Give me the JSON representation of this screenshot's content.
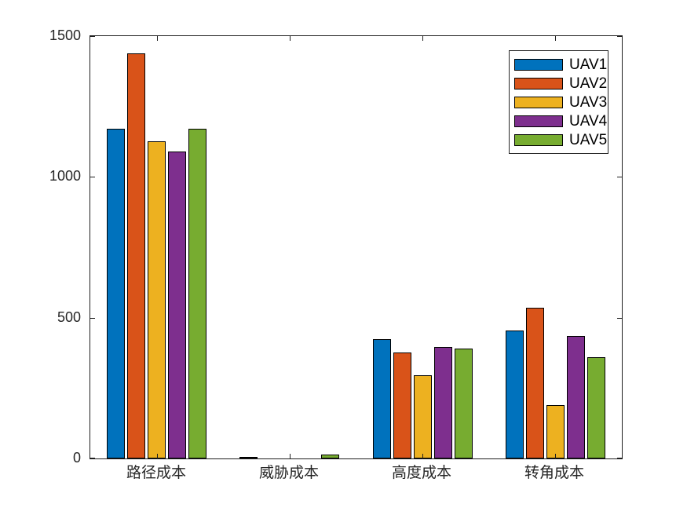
{
  "chart_data": {
    "type": "bar",
    "title": "",
    "xlabel": "",
    "ylabel": "",
    "grid": false,
    "background": "#ffffff",
    "axis_color": "#1f1f1f",
    "bar_edge_color": "#000000",
    "ylim": [
      0,
      1500
    ],
    "yticks": [
      "0",
      "500",
      "1000",
      "1500"
    ],
    "ytick_values": [
      0,
      500,
      1000,
      1500
    ],
    "categories": [
      "路径成本",
      "威胁成本",
      "高度成本",
      "转角成本"
    ],
    "legend_position": "top-right",
    "series": [
      {
        "name": "UAV1",
        "color": "#0072BD",
        "values": [
          1170,
          5,
          425,
          455
        ]
      },
      {
        "name": "UAV2",
        "color": "#D95319",
        "values": [
          1440,
          0,
          375,
          535
        ]
      },
      {
        "name": "UAV3",
        "color": "#EDB120",
        "values": [
          1125,
          0,
          295,
          190
        ]
      },
      {
        "name": "UAV4",
        "color": "#7E2F8E",
        "values": [
          1090,
          0,
          395,
          435
        ]
      },
      {
        "name": "UAV5",
        "color": "#77AC30",
        "values": [
          1170,
          15,
          390,
          360
        ]
      }
    ]
  }
}
